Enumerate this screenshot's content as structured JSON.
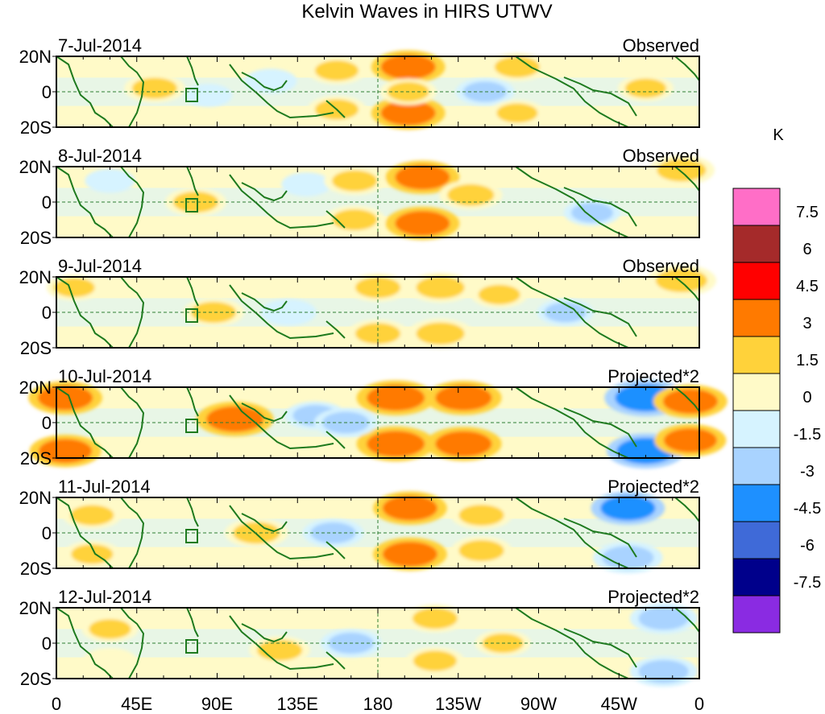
{
  "chart_data": {
    "type": "heatmap",
    "title": "Kelvin Waves in HIRS UTWV",
    "units": "K",
    "y_tick_labels": [
      "20N",
      "0",
      "20S"
    ],
    "x_tick_labels": [
      "0",
      "45E",
      "90E",
      "135E",
      "180",
      "135W",
      "90W",
      "45W",
      "0"
    ],
    "x_range_deg_east": [
      0,
      360
    ],
    "y_range_deg_north": [
      -20,
      20
    ],
    "colorbar": {
      "labels": [
        "7.5",
        "6",
        "4.5",
        "3",
        "1.5",
        "0",
        "-1.5",
        "-3",
        "-4.5",
        "-6",
        "-7.5"
      ],
      "colors": [
        "#ff6ec7",
        "#a52a2a",
        "#ff0000",
        "#ff7a00",
        "#ffd23a",
        "#fffac8",
        "#d6f3ff",
        "#a9d3ff",
        "#1e90ff",
        "#3f6ad8",
        "#00008b",
        "#8a2be2"
      ]
    },
    "panels": [
      {
        "date": "7-Jul-2014",
        "label": "Observed",
        "anomalies": [
          {
            "lon": 55,
            "lat": 2,
            "value": 2.0
          },
          {
            "lon": 120,
            "lat": 6,
            "value": -1.2
          },
          {
            "lon": 157,
            "lat": 12,
            "value": 1.8
          },
          {
            "lon": 157,
            "lat": -10,
            "value": 1.8
          },
          {
            "lon": 197,
            "lat": 14,
            "value": 3.2
          },
          {
            "lon": 197,
            "lat": -12,
            "value": 3.2
          },
          {
            "lon": 197,
            "lat": 0,
            "value": 1.6
          },
          {
            "lon": 240,
            "lat": 0,
            "value": -1.8
          },
          {
            "lon": 258,
            "lat": 14,
            "value": 2.0
          },
          {
            "lon": 258,
            "lat": -12,
            "value": 1.5
          },
          {
            "lon": 330,
            "lat": 2,
            "value": 1.5
          },
          {
            "lon": 85,
            "lat": -2,
            "value": -0.8
          }
        ]
      },
      {
        "date": "8-Jul-2014",
        "label": "Observed",
        "anomalies": [
          {
            "lon": 78,
            "lat": 0,
            "value": 2.0
          },
          {
            "lon": 140,
            "lat": 10,
            "value": -1.0
          },
          {
            "lon": 167,
            "lat": 12,
            "value": 2.0
          },
          {
            "lon": 167,
            "lat": -10,
            "value": 2.0
          },
          {
            "lon": 205,
            "lat": 14,
            "value": 3.2
          },
          {
            "lon": 205,
            "lat": -12,
            "value": 3.2
          },
          {
            "lon": 232,
            "lat": 4,
            "value": 2.2
          },
          {
            "lon": 300,
            "lat": -6,
            "value": -1.6
          },
          {
            "lon": 350,
            "lat": 18,
            "value": 2.5
          },
          {
            "lon": 30,
            "lat": 12,
            "value": -1.0
          }
        ]
      },
      {
        "date": "9-Jul-2014",
        "label": "Observed",
        "anomalies": [
          {
            "lon": 88,
            "lat": 0,
            "value": 2.0
          },
          {
            "lon": 130,
            "lat": 0,
            "value": -1.5
          },
          {
            "lon": 180,
            "lat": 14,
            "value": 2.0
          },
          {
            "lon": 180,
            "lat": -12,
            "value": 2.0
          },
          {
            "lon": 215,
            "lat": 14,
            "value": 2.4
          },
          {
            "lon": 215,
            "lat": -12,
            "value": 2.4
          },
          {
            "lon": 248,
            "lat": 10,
            "value": 1.6
          },
          {
            "lon": 285,
            "lat": 0,
            "value": -1.6
          },
          {
            "lon": 350,
            "lat": 18,
            "value": 2.8
          },
          {
            "lon": 10,
            "lat": 14,
            "value": 1.5
          }
        ]
      },
      {
        "date": "10-Jul-2014",
        "label": "Projected*2",
        "anomalies": [
          {
            "lon": 5,
            "lat": 14,
            "value": 3.2
          },
          {
            "lon": 5,
            "lat": -16,
            "value": 3.0
          },
          {
            "lon": 100,
            "lat": 2,
            "value": 3.5
          },
          {
            "lon": 145,
            "lat": 4,
            "value": -2.0
          },
          {
            "lon": 190,
            "lat": 14,
            "value": 3.6
          },
          {
            "lon": 190,
            "lat": -12,
            "value": 3.6
          },
          {
            "lon": 228,
            "lat": 14,
            "value": 3.4
          },
          {
            "lon": 228,
            "lat": -12,
            "value": 3.4
          },
          {
            "lon": 162,
            "lat": 0,
            "value": -2.2
          },
          {
            "lon": 330,
            "lat": 14,
            "value": -4.0
          },
          {
            "lon": 330,
            "lat": -16,
            "value": -3.6
          },
          {
            "lon": 355,
            "lat": 12,
            "value": 3.2
          },
          {
            "lon": 355,
            "lat": -10,
            "value": 3.0
          }
        ]
      },
      {
        "date": "11-Jul-2014",
        "label": "Projected*2",
        "anomalies": [
          {
            "lon": 20,
            "lat": 10,
            "value": 1.8
          },
          {
            "lon": 20,
            "lat": -12,
            "value": 1.6
          },
          {
            "lon": 112,
            "lat": 0,
            "value": 2.2
          },
          {
            "lon": 155,
            "lat": 0,
            "value": -2.0
          },
          {
            "lon": 198,
            "lat": 14,
            "value": 3.2
          },
          {
            "lon": 198,
            "lat": -12,
            "value": 3.2
          },
          {
            "lon": 238,
            "lat": 10,
            "value": 2.0
          },
          {
            "lon": 238,
            "lat": -10,
            "value": 2.0
          },
          {
            "lon": 320,
            "lat": 14,
            "value": -3.2
          },
          {
            "lon": 320,
            "lat": -14,
            "value": -2.8
          }
        ]
      },
      {
        "date": "12-Jul-2014",
        "label": "Projected*2",
        "anomalies": [
          {
            "lon": 30,
            "lat": 8,
            "value": 1.6
          },
          {
            "lon": 30,
            "lat": -10,
            "value": 1.4
          },
          {
            "lon": 125,
            "lat": -4,
            "value": 2.0
          },
          {
            "lon": 165,
            "lat": 0,
            "value": -2.0
          },
          {
            "lon": 212,
            "lat": 14,
            "value": 2.0
          },
          {
            "lon": 212,
            "lat": -10,
            "value": 1.8
          },
          {
            "lon": 250,
            "lat": 0,
            "value": 1.5
          },
          {
            "lon": 340,
            "lat": 14,
            "value": -2.6
          },
          {
            "lon": 340,
            "lat": -16,
            "value": -2.6
          }
        ]
      }
    ]
  }
}
